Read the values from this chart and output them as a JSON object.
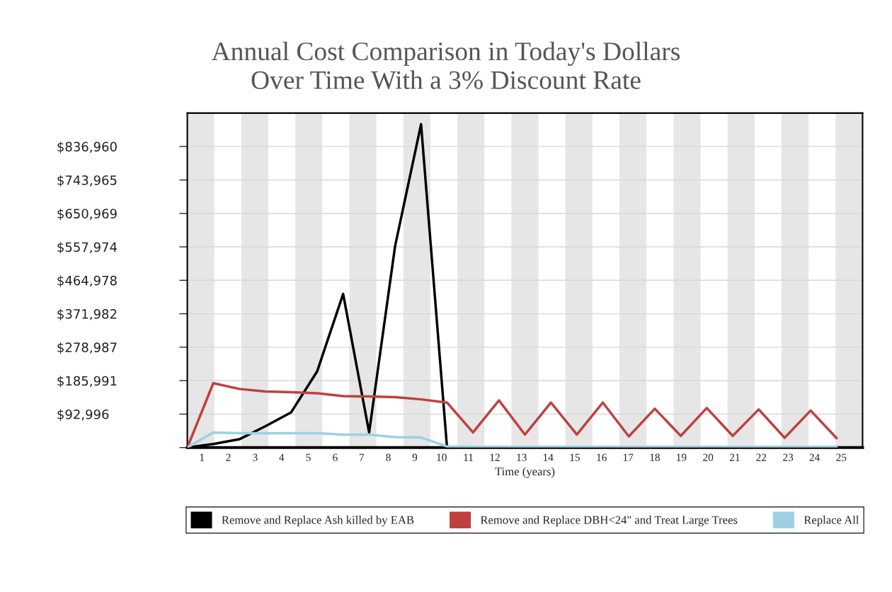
{
  "chart_data": {
    "type": "line",
    "title": "Annual Cost Comparison in Today's Dollars\nOver Time With a 3% Discount Rate",
    "xlabel": "Time (years)",
    "x": [
      0,
      1,
      2,
      3,
      4,
      5,
      6,
      7,
      8,
      9,
      10,
      11,
      12,
      13,
      14,
      15,
      16,
      17,
      18,
      19,
      20,
      21,
      22,
      23,
      24,
      25
    ],
    "series": [
      {
        "name": "Remove and Replace Ash killed by EAB",
        "color": "#000000",
        "x": [
          0,
          1,
          2,
          3,
          4,
          5,
          6,
          7,
          8,
          9,
          10
        ],
        "values": [
          0,
          10000,
          23000,
          59000,
          98000,
          212000,
          427000,
          42000,
          560000,
          899000,
          0
        ]
      },
      {
        "name": "Remove and Replace DBH<24\" and Treat Large Trees",
        "color": "#c04040",
        "values": [
          0,
          179000,
          163000,
          156000,
          154000,
          151000,
          143000,
          142000,
          140000,
          134000,
          125000,
          42000,
          131000,
          36000,
          125000,
          36000,
          125000,
          31000,
          108000,
          32500,
          110000,
          32500,
          106000,
          27000,
          103000,
          26000
        ]
      },
      {
        "name": "Replace All",
        "color": "#9dd0e4",
        "values": [
          0,
          42000,
          40000,
          40000,
          40000,
          40000,
          36000,
          36000,
          29000,
          28000,
          3000,
          2000,
          2000,
          2000,
          2000,
          2000,
          2000,
          2000,
          2000,
          2000,
          2000,
          2000,
          2000,
          2000,
          2000,
          2000
        ]
      }
    ],
    "xlim": [
      0,
      26
    ],
    "xticks": [
      {
        "value": 0.56,
        "label": "1"
      },
      {
        "value": 1.58,
        "label": "2"
      },
      {
        "value": 2.61,
        "label": "3"
      },
      {
        "value": 3.63,
        "label": "4"
      },
      {
        "value": 4.66,
        "label": "5"
      },
      {
        "value": 5.69,
        "label": "6"
      },
      {
        "value": 6.71,
        "label": "7"
      },
      {
        "value": 7.74,
        "label": "8"
      },
      {
        "value": 8.76,
        "label": "9"
      },
      {
        "value": 9.79,
        "label": "10"
      },
      {
        "value": 10.82,
        "label": "11"
      },
      {
        "value": 11.84,
        "label": "12"
      },
      {
        "value": 12.87,
        "label": "13"
      },
      {
        "value": 13.89,
        "label": "14"
      },
      {
        "value": 14.92,
        "label": "15"
      },
      {
        "value": 15.95,
        "label": "16"
      },
      {
        "value": 16.97,
        "label": "17"
      },
      {
        "value": 18.0,
        "label": "18"
      },
      {
        "value": 19.02,
        "label": "19"
      },
      {
        "value": 20.05,
        "label": "20"
      },
      {
        "value": 21.08,
        "label": "21"
      },
      {
        "value": 22.1,
        "label": "22"
      },
      {
        "value": 23.13,
        "label": "23"
      },
      {
        "value": 24.15,
        "label": "24"
      },
      {
        "value": 25.18,
        "label": "25"
      }
    ],
    "ylim": [
      0,
      929955
    ],
    "yticks": [
      {
        "value": 0,
        "label": null
      },
      {
        "value": 92996,
        "label": "$92,996"
      },
      {
        "value": 185991,
        "label": "$185,991"
      },
      {
        "value": 278987,
        "label": "$278,987"
      },
      {
        "value": 371982,
        "label": "$371,982"
      },
      {
        "value": 464978,
        "label": "$464,978"
      },
      {
        "value": 557974,
        "label": "$557,974"
      },
      {
        "value": 650969,
        "label": "$650,969"
      },
      {
        "value": 743965,
        "label": "$743,965"
      },
      {
        "value": 836960,
        "label": "$836,960"
      }
    ],
    "bands": [
      {
        "axis": "x",
        "from": 0,
        "to": 1.04,
        "color": "#e6e6e6"
      },
      {
        "axis": "x",
        "from": 2.08,
        "to": 3.12,
        "color": "#e6e6e6"
      },
      {
        "axis": "x",
        "from": 4.16,
        "to": 5.2,
        "color": "#e6e6e6"
      },
      {
        "axis": "x",
        "from": 6.24,
        "to": 7.28,
        "color": "#e6e6e6"
      },
      {
        "axis": "x",
        "from": 8.32,
        "to": 9.36,
        "color": "#e6e6e6"
      },
      {
        "axis": "x",
        "from": 10.4,
        "to": 11.44,
        "color": "#e6e6e6"
      },
      {
        "axis": "x",
        "from": 12.48,
        "to": 13.52,
        "color": "#e6e6e6"
      },
      {
        "axis": "x",
        "from": 14.56,
        "to": 15.6,
        "color": "#e6e6e6"
      },
      {
        "axis": "x",
        "from": 16.64,
        "to": 17.68,
        "color": "#e6e6e6"
      },
      {
        "axis": "x",
        "from": 18.72,
        "to": 19.76,
        "color": "#e6e6e6"
      },
      {
        "axis": "x",
        "from": 20.8,
        "to": 21.84,
        "color": "#e6e6e6"
      },
      {
        "axis": "x",
        "from": 22.88,
        "to": 23.92,
        "color": "#e6e6e6"
      },
      {
        "axis": "x",
        "from": 24.96,
        "to": 26,
        "color": "#e6e6e6"
      }
    ],
    "grid": "y",
    "legend": "bottom",
    "marker": "none",
    "line_style": "solid"
  }
}
